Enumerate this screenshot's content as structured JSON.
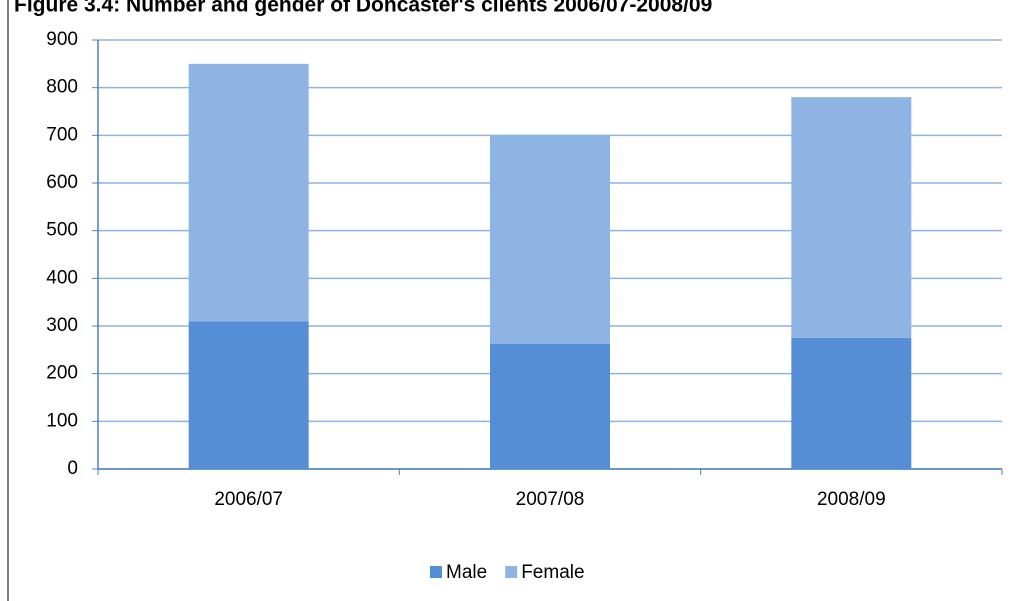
{
  "chart_data": {
    "type": "stacked_bar",
    "title": "Figure 3.4: Number and gender of Doncaster's clients 2006/07-2008/09",
    "categories": [
      "2006/07",
      "2007/08",
      "2008/09"
    ],
    "series": [
      {
        "name": "Male",
        "color": "#558ed5",
        "values": [
          310,
          263,
          275
        ]
      },
      {
        "name": "Female",
        "color": "#8eb4e3",
        "values": [
          540,
          437,
          505
        ]
      }
    ],
    "ylim": [
      0,
      900
    ],
    "yticks": [
      0,
      100,
      200,
      300,
      400,
      500,
      600,
      700,
      800,
      900
    ],
    "grid": true,
    "legend": "bottom"
  }
}
